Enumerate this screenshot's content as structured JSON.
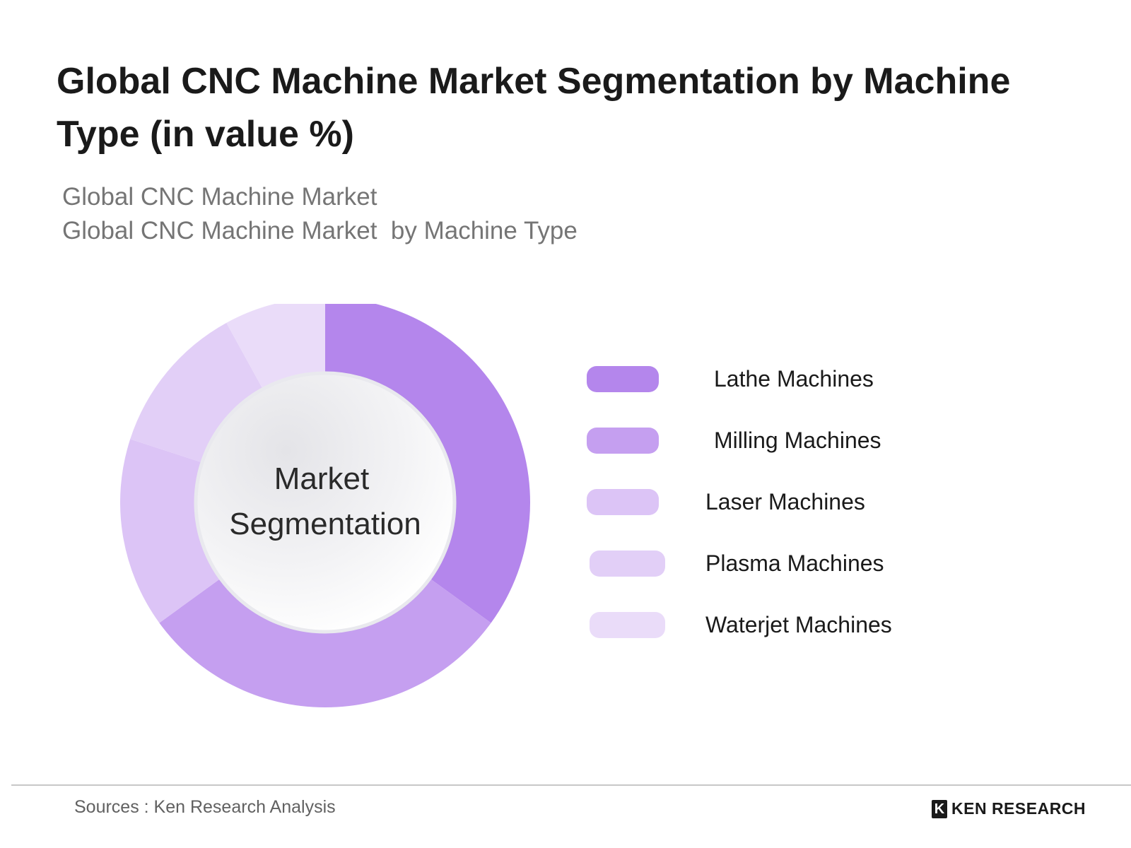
{
  "title": "Global CNC Machine Market Segmentation by Machine Type (in value %)",
  "subtitle_lines": [
    "Global CNC Machine Market",
    "Global CNC Machine Market  by Machine Type"
  ],
  "center_label": [
    "Market",
    "Segmentation"
  ],
  "footer": {
    "source": "Sources : Ken Research Analysis",
    "brand_mark": "K",
    "brand": "KEN RESEARCH"
  },
  "colors": {
    "lathe": "#b486ec",
    "milling": "#c59ff0",
    "laser": "#dcc4f6",
    "plasma": "#e2cff7",
    "waterjet": "#eadcf9"
  },
  "chart_data": {
    "type": "pie",
    "variant": "donut",
    "categories": [
      "Lathe Machines",
      "Milling Machines",
      "Laser Machines",
      "Plasma Machines",
      "Waterjet Machines"
    ],
    "values": [
      35,
      30,
      15,
      12,
      8
    ],
    "legend": "right",
    "title": "Global CNC Machine Market Segmentation by Machine Type (in value %)"
  }
}
